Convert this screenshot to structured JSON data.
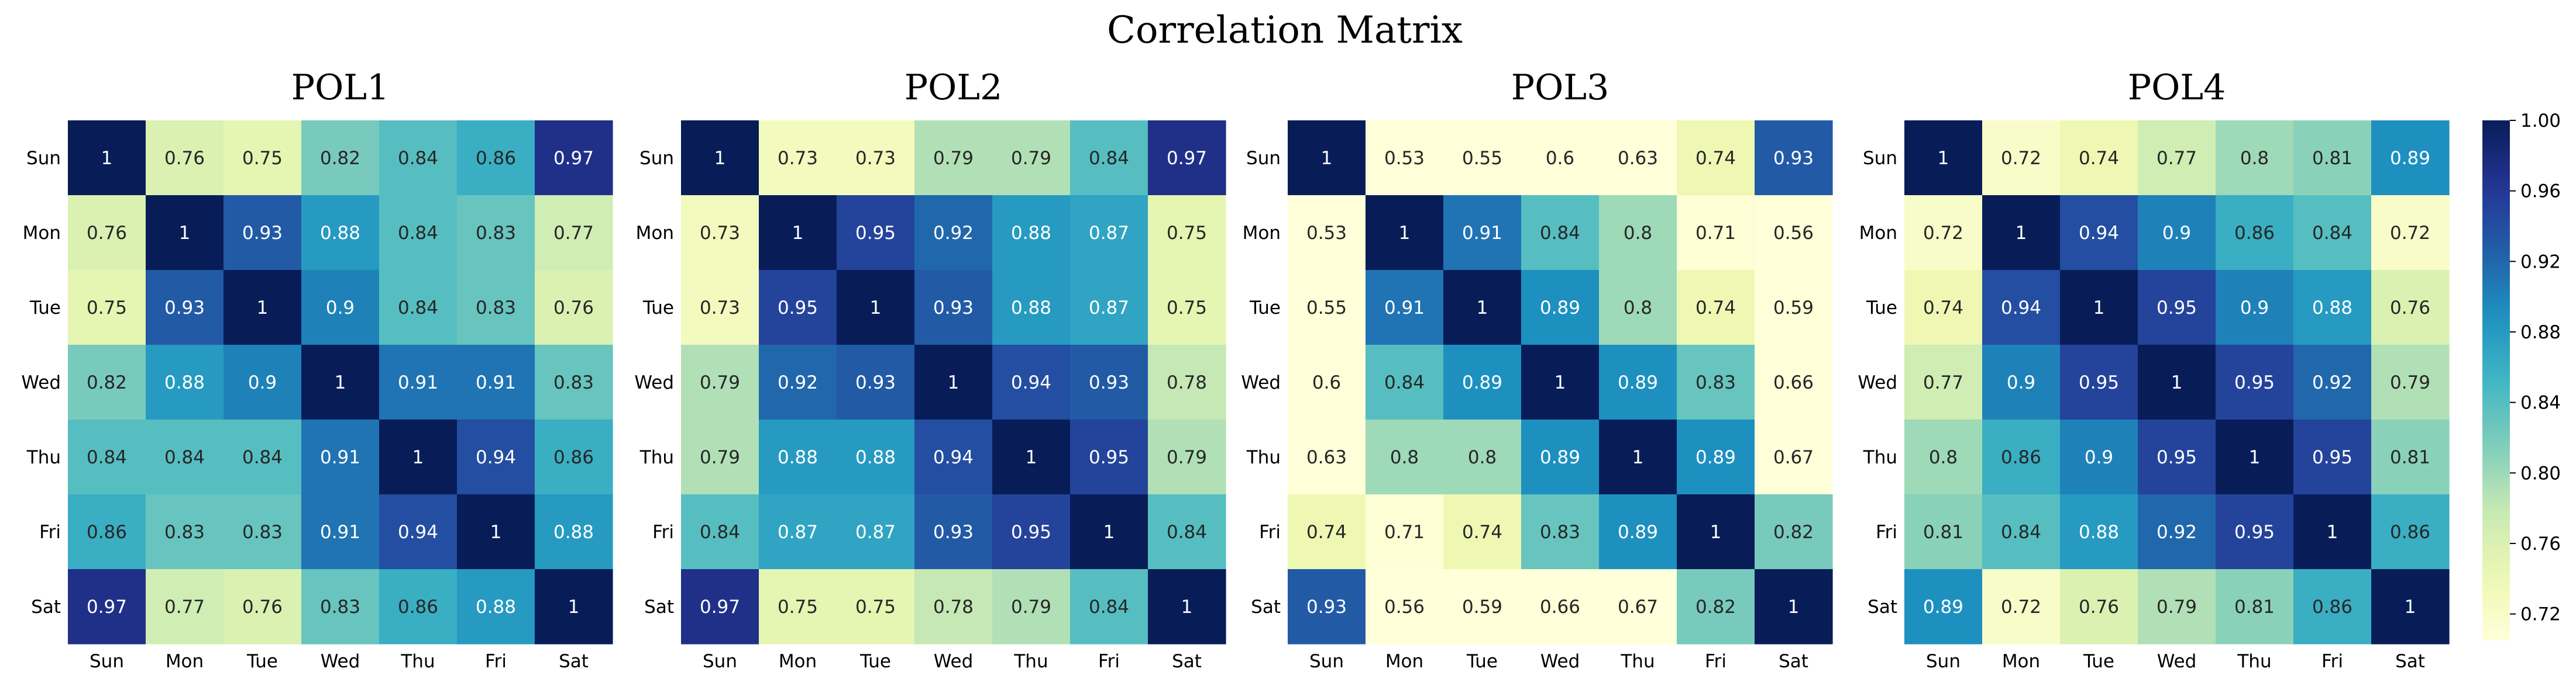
{
  "chart_data": {
    "type": "heatmap",
    "title": "Correlation Matrix",
    "labels": [
      "Sun",
      "Mon",
      "Tue",
      "Wed",
      "Thu",
      "Fri",
      "Sat"
    ],
    "colormap": "YlGnBu",
    "colorbar": {
      "vmin": 0.705,
      "vmax": 1.0,
      "ticks": [
        "1.00",
        "0.96",
        "0.92",
        "0.88",
        "0.84",
        "0.80",
        "0.76",
        "0.72"
      ],
      "tick_values": [
        1.0,
        0.96,
        0.92,
        0.88,
        0.84,
        0.8,
        0.76,
        0.72
      ]
    },
    "panels": [
      {
        "title": "POL1",
        "matrix": [
          [
            1,
            0.76,
            0.75,
            0.82,
            0.84,
            0.86,
            0.97
          ],
          [
            0.76,
            1,
            0.93,
            0.88,
            0.84,
            0.83,
            0.77
          ],
          [
            0.75,
            0.93,
            1,
            0.9,
            0.84,
            0.83,
            0.76
          ],
          [
            0.82,
            0.88,
            0.9,
            1,
            0.91,
            0.91,
            0.83
          ],
          [
            0.84,
            0.84,
            0.84,
            0.91,
            1,
            0.94,
            0.86
          ],
          [
            0.86,
            0.83,
            0.83,
            0.91,
            0.94,
            1,
            0.88
          ],
          [
            0.97,
            0.77,
            0.76,
            0.83,
            0.86,
            0.88,
            1
          ]
        ]
      },
      {
        "title": "POL2",
        "matrix": [
          [
            1,
            0.73,
            0.73,
            0.79,
            0.79,
            0.84,
            0.97
          ],
          [
            0.73,
            1,
            0.95,
            0.92,
            0.88,
            0.87,
            0.75
          ],
          [
            0.73,
            0.95,
            1,
            0.93,
            0.88,
            0.87,
            0.75
          ],
          [
            0.79,
            0.92,
            0.93,
            1,
            0.94,
            0.93,
            0.78
          ],
          [
            0.79,
            0.88,
            0.88,
            0.94,
            1,
            0.95,
            0.79
          ],
          [
            0.84,
            0.87,
            0.87,
            0.93,
            0.95,
            1,
            0.84
          ],
          [
            0.97,
            0.75,
            0.75,
            0.78,
            0.79,
            0.84,
            1
          ]
        ]
      },
      {
        "title": "POL3",
        "matrix": [
          [
            1,
            0.53,
            0.55,
            0.6,
            0.63,
            0.74,
            0.93
          ],
          [
            0.53,
            1,
            0.91,
            0.84,
            0.8,
            0.71,
            0.56
          ],
          [
            0.55,
            0.91,
            1,
            0.89,
            0.8,
            0.74,
            0.59
          ],
          [
            0.6,
            0.84,
            0.89,
            1,
            0.89,
            0.83,
            0.66
          ],
          [
            0.63,
            0.8,
            0.8,
            0.89,
            1,
            0.89,
            0.67
          ],
          [
            0.74,
            0.71,
            0.74,
            0.83,
            0.89,
            1,
            0.82
          ],
          [
            0.93,
            0.56,
            0.59,
            0.66,
            0.67,
            0.82,
            1
          ]
        ]
      },
      {
        "title": "POL4",
        "matrix": [
          [
            1,
            0.72,
            0.74,
            0.77,
            0.8,
            0.81,
            0.89
          ],
          [
            0.72,
            1,
            0.94,
            0.9,
            0.86,
            0.84,
            0.72
          ],
          [
            0.74,
            0.94,
            1,
            0.95,
            0.9,
            0.88,
            0.76
          ],
          [
            0.77,
            0.9,
            0.95,
            1,
            0.95,
            0.92,
            0.79
          ],
          [
            0.8,
            0.86,
            0.9,
            0.95,
            1,
            0.95,
            0.81
          ],
          [
            0.81,
            0.84,
            0.88,
            0.92,
            0.95,
            1,
            0.86
          ],
          [
            0.89,
            0.72,
            0.76,
            0.79,
            0.81,
            0.86,
            1
          ]
        ]
      }
    ]
  }
}
